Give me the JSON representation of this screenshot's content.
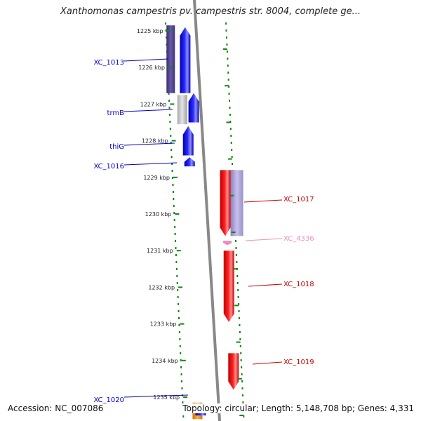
{
  "title": "Xanthomonas campestris pv. campestris str. 8004, complete ge...",
  "footer": {
    "accession": "Accession: NC_007086",
    "summary": "Topology: circular; Length: 5,148,708 bp; Genes: 4,331"
  },
  "colors": {
    "forward_gene": "#0000ee",
    "reverse_gene": "#ee0000",
    "other_gene": "#5a4a8e",
    "gray_gene": "#b8b8b8",
    "orange_gene": "#ee8800",
    "pink_gene": "#f08ab8",
    "tick": "#118811",
    "backbone": "#888888"
  },
  "ruler": {
    "unit": "kbp",
    "ticks": [
      {
        "kbp": 1225,
        "label": "1225 kbp"
      },
      {
        "kbp": 1226,
        "label": "1226 kbp"
      },
      {
        "kbp": 1227,
        "label": "1227 kbp"
      },
      {
        "kbp": 1228,
        "label": "1228 kbp"
      },
      {
        "kbp": 1229,
        "label": "1229 kbp"
      },
      {
        "kbp": 1230,
        "label": "1230 kbp"
      },
      {
        "kbp": 1231,
        "label": "1231 kbp"
      },
      {
        "kbp": 1232,
        "label": "1232 kbp"
      },
      {
        "kbp": 1233,
        "label": "1233 kbp"
      },
      {
        "kbp": 1234,
        "label": "1234 kbp"
      },
      {
        "kbp": 1235,
        "label": "1235 kbp"
      }
    ]
  },
  "genes": [
    {
      "name": "XC_1013",
      "strand": "+",
      "start_kbp": 1224.9,
      "end_kbp": 1226.7,
      "color": "forward"
    },
    {
      "name": "trmB",
      "strand": "+",
      "start_kbp": 1226.7,
      "end_kbp": 1227.5,
      "color": "forward"
    },
    {
      "name": "thiG",
      "strand": "+",
      "start_kbp": 1227.6,
      "end_kbp": 1228.4,
      "color": "forward"
    },
    {
      "name": "XC_1016",
      "strand": "+",
      "start_kbp": 1228.45,
      "end_kbp": 1228.7,
      "color": "forward"
    },
    {
      "name": "XC_1017",
      "strand": "-",
      "start_kbp": 1228.8,
      "end_kbp": 1230.6,
      "color": "reverse"
    },
    {
      "name": "XC_4336",
      "strand": "-",
      "start_kbp": 1230.73,
      "end_kbp": 1230.85,
      "color": "pink"
    },
    {
      "name": "XC_1018",
      "strand": "-",
      "start_kbp": 1231.0,
      "end_kbp": 1232.95,
      "color": "reverse"
    },
    {
      "name": "XC_1019",
      "strand": "-",
      "start_kbp": 1233.8,
      "end_kbp": 1234.8,
      "color": "reverse"
    },
    {
      "name": "XC_1020",
      "strand": "+",
      "start_kbp": 1235.15,
      "end_kbp": 1235.5,
      "color": "forward"
    }
  ],
  "labels": [
    {
      "name": "XC_1013",
      "side": "left",
      "color": "#0000cc"
    },
    {
      "name": "trmB",
      "side": "left",
      "color": "#0000cc"
    },
    {
      "name": "thiG",
      "side": "left",
      "color": "#0000cc"
    },
    {
      "name": "XC_1016",
      "side": "left",
      "color": "#0000cc"
    },
    {
      "name": "XC_1017",
      "side": "right",
      "color": "#cc0000"
    },
    {
      "name": "XC_4336",
      "side": "right",
      "color": "#f090c0"
    },
    {
      "name": "XC_1018",
      "side": "right",
      "color": "#cc0000"
    },
    {
      "name": "XC_1019",
      "side": "right",
      "color": "#cc0000"
    },
    {
      "name": "XC_1020",
      "side": "left",
      "color": "#0000cc"
    }
  ]
}
